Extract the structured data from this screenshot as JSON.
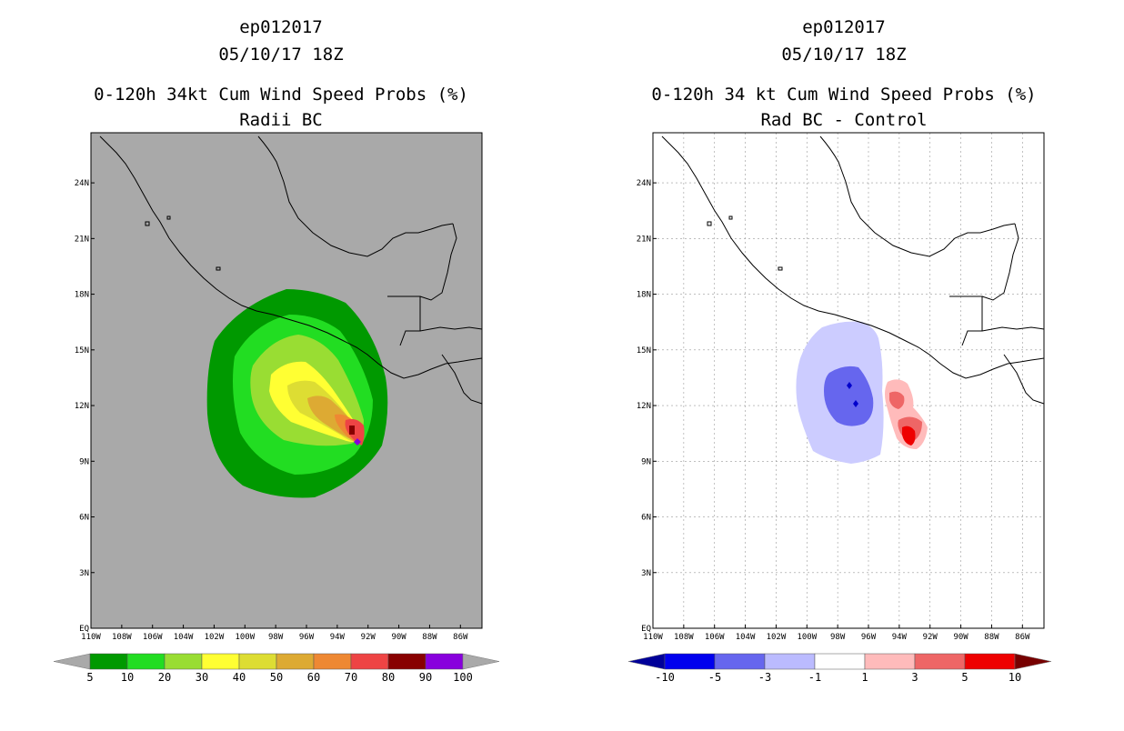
{
  "left_panel": {
    "title_lines": [
      "ep012017",
      "05/10/17 18Z",
      "0-120h 34kt Cum Wind Speed Probs (%)",
      "Radii BC"
    ],
    "colors": {
      "background": "#a9a9a9"
    },
    "colorbar": {
      "labels": [
        "5",
        "10",
        "20",
        "30",
        "40",
        "50",
        "60",
        "70",
        "80",
        "90",
        "100"
      ],
      "colors": [
        "#009900",
        "#22dd22",
        "#99dd33",
        "#ffff33",
        "#dddd33",
        "#ddaa33",
        "#ee8833",
        "#ee4444",
        "#880000",
        "#8800dd"
      ],
      "under_color": "#a9a9a9",
      "over_color": "#a9a9a9"
    },
    "contours": [
      {
        "level": "5",
        "color": "#009900"
      },
      {
        "level": "10",
        "color": "#22dd22"
      },
      {
        "level": "20",
        "color": "#99dd33"
      },
      {
        "level": "30",
        "color": "#ffff33"
      },
      {
        "level": "40",
        "color": "#dddd33"
      },
      {
        "level": "50",
        "color": "#ddaa33"
      },
      {
        "level": "60",
        "color": "#ee8833"
      },
      {
        "level": "70",
        "color": "#ee4444"
      },
      {
        "level": "80",
        "color": "#880000"
      },
      {
        "level": "90",
        "color": "#8800dd"
      }
    ]
  },
  "right_panel": {
    "title_lines": [
      "ep012017",
      "05/10/17 18Z",
      "0-120h 34 kt Cum Wind Speed Probs (%)",
      "Rad BC - Control"
    ],
    "colors": {
      "background": "#ffffff"
    },
    "colorbar": {
      "labels": [
        "-10",
        "-5",
        "-3",
        "-1",
        "1",
        "3",
        "5",
        "10"
      ],
      "colors": [
        "#0000ee",
        "#6666ee",
        "#bbbbff",
        "#ffffff",
        "#ffbbbb",
        "#ee6666",
        "#ee0000"
      ],
      "under_color": "#000099",
      "over_color": "#770000"
    },
    "contours": [
      {
        "level": "-1 to -3",
        "color": "#ccccff"
      },
      {
        "level": "-3 to -5",
        "color": "#6666ee"
      },
      {
        "level": "< -10",
        "color": "#0000cc"
      },
      {
        "level": "1 to 3",
        "color": "#ffbbbb"
      },
      {
        "level": "3 to 5",
        "color": "#ee6666"
      },
      {
        "level": "5 to 10",
        "color": "#ee0000"
      }
    ]
  },
  "chart_data": {
    "type": "heatmap",
    "x_tick_labels": [
      "110W",
      "108W",
      "106W",
      "104W",
      "102W",
      "100W",
      "98W",
      "96W",
      "94W",
      "92W",
      "90W",
      "88W",
      "86W"
    ],
    "y_tick_labels": [
      "EQ",
      "3N",
      "6N",
      "9N",
      "12N",
      "15N",
      "18N",
      "21N",
      "24N"
    ],
    "xlim": [
      -110,
      -85
    ],
    "ylim": [
      0,
      26
    ],
    "storm_center": {
      "lon": -93,
      "lat": 10
    }
  }
}
